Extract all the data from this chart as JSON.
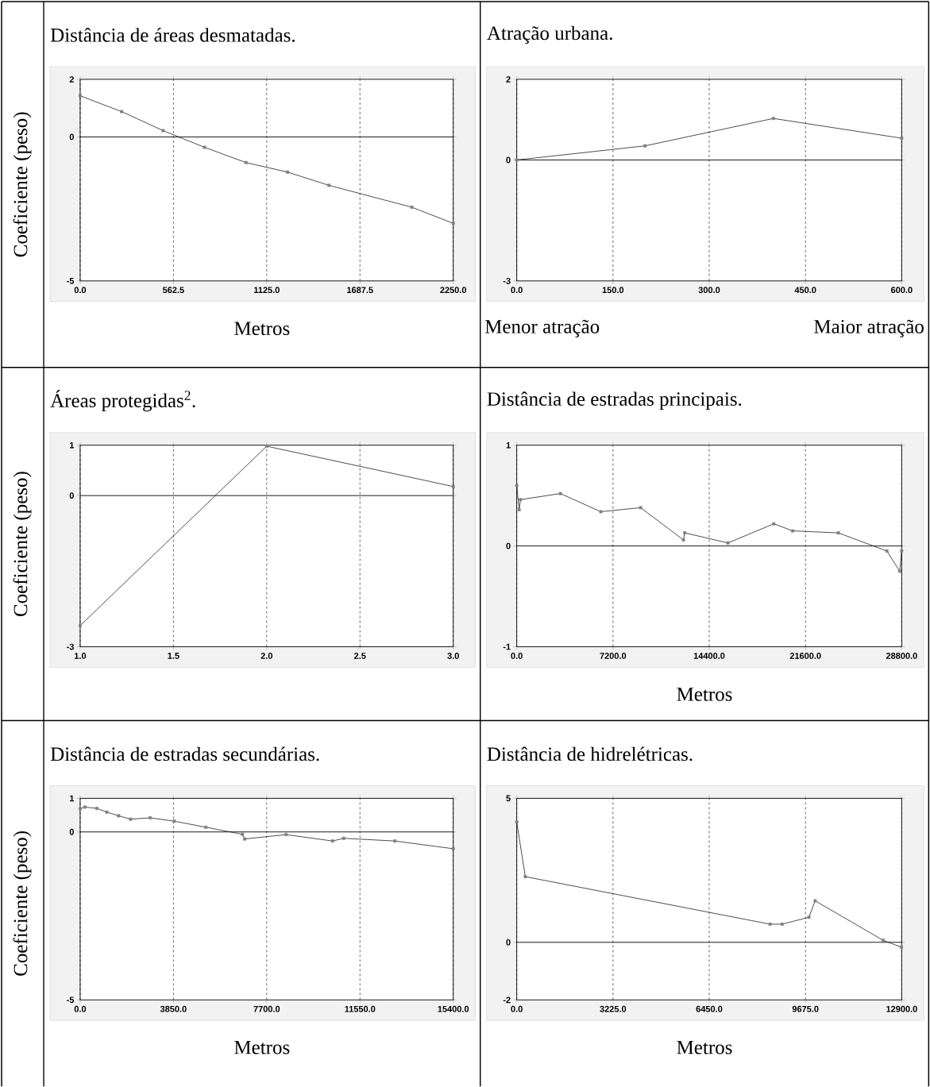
{
  "chart_data": [
    {
      "type": "line",
      "title": "Distância de áreas desmatadas.",
      "xlabel": "Metros",
      "ylabel": "Coeficiente (peso)",
      "x": [
        0,
        250,
        500,
        750,
        1000,
        1250,
        1500,
        2000,
        2250
      ],
      "series": [
        {
          "color": "#000000",
          "values": [
            1.43,
            0.88,
            0.22,
            -0.36,
            -0.89,
            -1.22,
            -1.68,
            -2.44,
            -3.0
          ]
        }
      ],
      "xlim": [
        0,
        2250
      ],
      "ylim": [
        -5,
        2
      ],
      "xticks": [
        {
          "value": 0,
          "label": "0.0"
        },
        {
          "value": 562.5,
          "label": "562.5"
        },
        {
          "value": 1125,
          "label": "1125.0"
        },
        {
          "value": 1687.5,
          "label": "1687.5"
        },
        {
          "value": 2250,
          "label": "2250.0"
        }
      ],
      "yticks": [
        -5,
        0,
        2
      ],
      "grid": "x",
      "marker": "square",
      "line_style": "solid",
      "ref_lines": [
        {
          "axis": "y",
          "value": 0
        }
      ]
    },
    {
      "type": "line",
      "title": "Atração urbana.",
      "annotations": [
        "Menor atração",
        "Maior atração"
      ],
      "x": [
        0,
        200,
        400,
        600
      ],
      "series": [
        {
          "color": "#000000",
          "values": [
            0,
            0.35,
            1.03,
            0.54
          ]
        }
      ],
      "xlim": [
        0,
        600
      ],
      "ylim": [
        -3,
        2
      ],
      "xticks": [
        {
          "value": 0,
          "label": "0.0"
        },
        {
          "value": 150,
          "label": "150.0"
        },
        {
          "value": 300,
          "label": "300.0"
        },
        {
          "value": 450,
          "label": "450.0"
        },
        {
          "value": 600,
          "label": "600.0"
        }
      ],
      "yticks": [
        -3,
        0,
        2
      ],
      "grid": "x",
      "marker": "square",
      "line_style": "solid",
      "ref_lines": [
        {
          "axis": "y",
          "value": 0
        }
      ]
    },
    {
      "type": "line",
      "title": "Áreas protegidas$^{2}$.",
      "ylabel": "Coeficiente (peso)",
      "x": [
        1,
        2,
        3
      ],
      "series": [
        {
          "color": "#000000",
          "values": [
            -2.58,
            0.98,
            0.18
          ]
        }
      ],
      "xlim": [
        1,
        3
      ],
      "ylim": [
        -3,
        1
      ],
      "xticks": [
        {
          "value": 1,
          "label": "1.0"
        },
        {
          "value": 1.5,
          "label": "1.5"
        },
        {
          "value": 2,
          "label": "2.0"
        },
        {
          "value": 2.5,
          "label": "2.5"
        },
        {
          "value": 3,
          "label": "3.0"
        }
      ],
      "yticks": [
        -3,
        0,
        1
      ],
      "grid": "x",
      "marker": "square",
      "line_style": "solid",
      "ref_lines": [
        {
          "axis": "y",
          "value": 0
        }
      ]
    },
    {
      "type": "line",
      "title": "Distância de estradas principais.",
      "xlabel": "Metros",
      "x": [
        0,
        180,
        280,
        3270,
        6290,
        9270,
        12470,
        12570,
        15800,
        19230,
        20640,
        24060,
        27690,
        28650,
        28800
      ],
      "series": [
        {
          "color": "#000000",
          "values": [
            0.6,
            0.36,
            0.46,
            0.52,
            0.34,
            0.38,
            0.06,
            0.13,
            0.03,
            0.22,
            0.15,
            0.13,
            -0.05,
            -0.25,
            -0.05
          ]
        }
      ],
      "xlim": [
        0,
        28800
      ],
      "ylim": [
        -1,
        1
      ],
      "xticks": [
        {
          "value": 0,
          "label": "0.0"
        },
        {
          "value": 7200,
          "label": "7200.0"
        },
        {
          "value": 14400,
          "label": "14400.0"
        },
        {
          "value": 21600,
          "label": "21600.0"
        },
        {
          "value": 28800,
          "label": "28800.0"
        }
      ],
      "yticks": [
        -1,
        0,
        1
      ],
      "grid": "x",
      "marker": "square",
      "line_style": "solid",
      "ref_lines": [
        {
          "axis": "y",
          "value": 0
        }
      ]
    },
    {
      "type": "line",
      "title": "Distância de estradas secundárias.",
      "xlabel": "Metros",
      "ylabel": "Coeficiente (peso)",
      "x": [
        0,
        196,
        690,
        1100,
        1590,
        2080,
        2885,
        3885,
        5190,
        6700,
        6790,
        8500,
        10420,
        10880,
        12990,
        15400
      ],
      "series": [
        {
          "color": "#000000",
          "values": [
            0.69,
            0.74,
            0.7,
            0.59,
            0.48,
            0.38,
            0.42,
            0.32,
            0.14,
            -0.07,
            -0.21,
            -0.08,
            -0.27,
            -0.19,
            -0.27,
            -0.5
          ]
        }
      ],
      "xlim": [
        0,
        15400
      ],
      "ylim": [
        -5,
        1
      ],
      "xticks": [
        {
          "value": 0,
          "label": "0.0"
        },
        {
          "value": 3850,
          "label": "3850.0"
        },
        {
          "value": 7700,
          "label": "7700.0"
        },
        {
          "value": 11550,
          "label": "11550.0"
        },
        {
          "value": 15400,
          "label": "15400.0"
        }
      ],
      "yticks": [
        -5,
        0,
        1
      ],
      "grid": "x",
      "marker": "square",
      "line_style": "solid",
      "ref_lines": [
        {
          "axis": "y",
          "value": 0
        }
      ]
    },
    {
      "type": "line",
      "title": "Distância de hidrelétricas.",
      "xlabel": "Metros",
      "x": [
        0,
        287,
        8490,
        8890,
        9790,
        10000,
        12280,
        12890
      ],
      "series": [
        {
          "color": "#000000",
          "values": [
            4.18,
            2.28,
            0.63,
            0.63,
            0.87,
            1.44,
            0.07,
            -0.17
          ]
        }
      ],
      "xlim": [
        0,
        12900
      ],
      "ylim": [
        -2,
        5
      ],
      "xticks": [
        {
          "value": 0,
          "label": "0.0"
        },
        {
          "value": 3225,
          "label": "3225.0"
        },
        {
          "value": 6450,
          "label": "6450.0"
        },
        {
          "value": 9675,
          "label": "9675.0"
        },
        {
          "value": 12900,
          "label": "12900.0"
        }
      ],
      "yticks": [
        -2,
        0,
        5
      ],
      "grid": "x",
      "marker": "square",
      "line_style": "solid",
      "ref_lines": [
        {
          "axis": "y",
          "value": 0
        }
      ]
    }
  ]
}
